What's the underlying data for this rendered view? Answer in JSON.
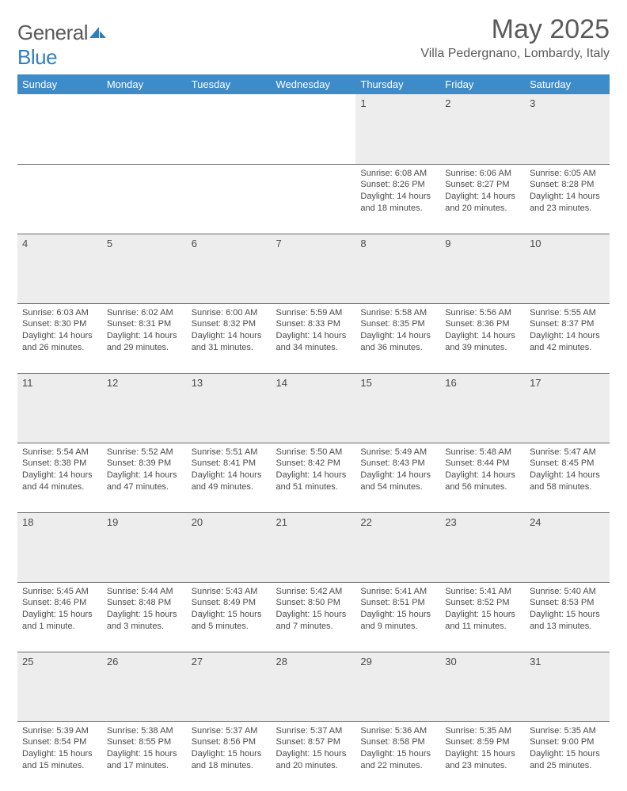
{
  "logo": {
    "part1": "General",
    "part2": "Blue"
  },
  "title": "May 2025",
  "location": "Villa Pedergnano, Lombardy, Italy",
  "colors": {
    "header_bg": "#3d8bc9",
    "header_text": "#ffffff",
    "daynum_bg": "#ededed",
    "border": "#6a6a6a",
    "text": "#4a4a4a",
    "logo_gray": "#5a5a5a",
    "logo_blue": "#2f7fbf",
    "page_bg": "#ffffff"
  },
  "day_headers": [
    "Sunday",
    "Monday",
    "Tuesday",
    "Wednesday",
    "Thursday",
    "Friday",
    "Saturday"
  ],
  "weeks": [
    [
      null,
      null,
      null,
      null,
      {
        "n": "1",
        "sr": "Sunrise: 6:08 AM",
        "ss": "Sunset: 8:26 PM",
        "dl": "Daylight: 14 hours and 18 minutes."
      },
      {
        "n": "2",
        "sr": "Sunrise: 6:06 AM",
        "ss": "Sunset: 8:27 PM",
        "dl": "Daylight: 14 hours and 20 minutes."
      },
      {
        "n": "3",
        "sr": "Sunrise: 6:05 AM",
        "ss": "Sunset: 8:28 PM",
        "dl": "Daylight: 14 hours and 23 minutes."
      }
    ],
    [
      {
        "n": "4",
        "sr": "Sunrise: 6:03 AM",
        "ss": "Sunset: 8:30 PM",
        "dl": "Daylight: 14 hours and 26 minutes."
      },
      {
        "n": "5",
        "sr": "Sunrise: 6:02 AM",
        "ss": "Sunset: 8:31 PM",
        "dl": "Daylight: 14 hours and 29 minutes."
      },
      {
        "n": "6",
        "sr": "Sunrise: 6:00 AM",
        "ss": "Sunset: 8:32 PM",
        "dl": "Daylight: 14 hours and 31 minutes."
      },
      {
        "n": "7",
        "sr": "Sunrise: 5:59 AM",
        "ss": "Sunset: 8:33 PM",
        "dl": "Daylight: 14 hours and 34 minutes."
      },
      {
        "n": "8",
        "sr": "Sunrise: 5:58 AM",
        "ss": "Sunset: 8:35 PM",
        "dl": "Daylight: 14 hours and 36 minutes."
      },
      {
        "n": "9",
        "sr": "Sunrise: 5:56 AM",
        "ss": "Sunset: 8:36 PM",
        "dl": "Daylight: 14 hours and 39 minutes."
      },
      {
        "n": "10",
        "sr": "Sunrise: 5:55 AM",
        "ss": "Sunset: 8:37 PM",
        "dl": "Daylight: 14 hours and 42 minutes."
      }
    ],
    [
      {
        "n": "11",
        "sr": "Sunrise: 5:54 AM",
        "ss": "Sunset: 8:38 PM",
        "dl": "Daylight: 14 hours and 44 minutes."
      },
      {
        "n": "12",
        "sr": "Sunrise: 5:52 AM",
        "ss": "Sunset: 8:39 PM",
        "dl": "Daylight: 14 hours and 47 minutes."
      },
      {
        "n": "13",
        "sr": "Sunrise: 5:51 AM",
        "ss": "Sunset: 8:41 PM",
        "dl": "Daylight: 14 hours and 49 minutes."
      },
      {
        "n": "14",
        "sr": "Sunrise: 5:50 AM",
        "ss": "Sunset: 8:42 PM",
        "dl": "Daylight: 14 hours and 51 minutes."
      },
      {
        "n": "15",
        "sr": "Sunrise: 5:49 AM",
        "ss": "Sunset: 8:43 PM",
        "dl": "Daylight: 14 hours and 54 minutes."
      },
      {
        "n": "16",
        "sr": "Sunrise: 5:48 AM",
        "ss": "Sunset: 8:44 PM",
        "dl": "Daylight: 14 hours and 56 minutes."
      },
      {
        "n": "17",
        "sr": "Sunrise: 5:47 AM",
        "ss": "Sunset: 8:45 PM",
        "dl": "Daylight: 14 hours and 58 minutes."
      }
    ],
    [
      {
        "n": "18",
        "sr": "Sunrise: 5:45 AM",
        "ss": "Sunset: 8:46 PM",
        "dl": "Daylight: 15 hours and 1 minute."
      },
      {
        "n": "19",
        "sr": "Sunrise: 5:44 AM",
        "ss": "Sunset: 8:48 PM",
        "dl": "Daylight: 15 hours and 3 minutes."
      },
      {
        "n": "20",
        "sr": "Sunrise: 5:43 AM",
        "ss": "Sunset: 8:49 PM",
        "dl": "Daylight: 15 hours and 5 minutes."
      },
      {
        "n": "21",
        "sr": "Sunrise: 5:42 AM",
        "ss": "Sunset: 8:50 PM",
        "dl": "Daylight: 15 hours and 7 minutes."
      },
      {
        "n": "22",
        "sr": "Sunrise: 5:41 AM",
        "ss": "Sunset: 8:51 PM",
        "dl": "Daylight: 15 hours and 9 minutes."
      },
      {
        "n": "23",
        "sr": "Sunrise: 5:41 AM",
        "ss": "Sunset: 8:52 PM",
        "dl": "Daylight: 15 hours and 11 minutes."
      },
      {
        "n": "24",
        "sr": "Sunrise: 5:40 AM",
        "ss": "Sunset: 8:53 PM",
        "dl": "Daylight: 15 hours and 13 minutes."
      }
    ],
    [
      {
        "n": "25",
        "sr": "Sunrise: 5:39 AM",
        "ss": "Sunset: 8:54 PM",
        "dl": "Daylight: 15 hours and 15 minutes."
      },
      {
        "n": "26",
        "sr": "Sunrise: 5:38 AM",
        "ss": "Sunset: 8:55 PM",
        "dl": "Daylight: 15 hours and 17 minutes."
      },
      {
        "n": "27",
        "sr": "Sunrise: 5:37 AM",
        "ss": "Sunset: 8:56 PM",
        "dl": "Daylight: 15 hours and 18 minutes."
      },
      {
        "n": "28",
        "sr": "Sunrise: 5:37 AM",
        "ss": "Sunset: 8:57 PM",
        "dl": "Daylight: 15 hours and 20 minutes."
      },
      {
        "n": "29",
        "sr": "Sunrise: 5:36 AM",
        "ss": "Sunset: 8:58 PM",
        "dl": "Daylight: 15 hours and 22 minutes."
      },
      {
        "n": "30",
        "sr": "Sunrise: 5:35 AM",
        "ss": "Sunset: 8:59 PM",
        "dl": "Daylight: 15 hours and 23 minutes."
      },
      {
        "n": "31",
        "sr": "Sunrise: 5:35 AM",
        "ss": "Sunset: 9:00 PM",
        "dl": "Daylight: 15 hours and 25 minutes."
      }
    ]
  ]
}
